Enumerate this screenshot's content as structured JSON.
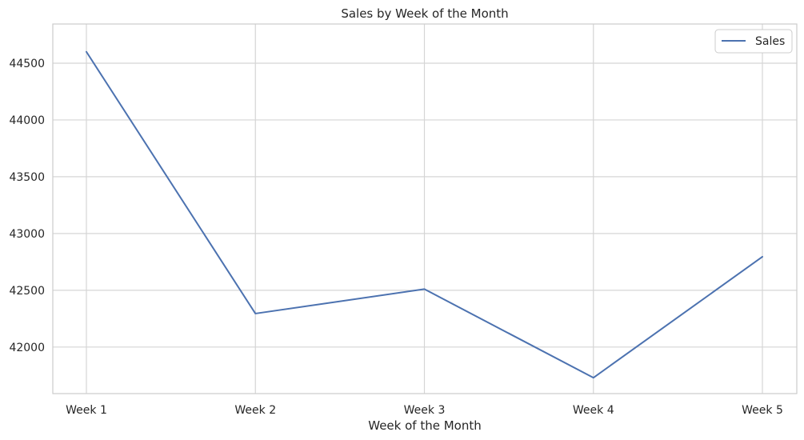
{
  "chart_data": {
    "type": "line",
    "title": "Sales by Week of the Month",
    "xlabel": "Week of the Month",
    "ylabel": "",
    "categories": [
      "Week 1",
      "Week 2",
      "Week 3",
      "Week 4",
      "Week 5"
    ],
    "series": [
      {
        "name": "Sales",
        "values": [
          44600,
          42295,
          42510,
          41730,
          42795
        ],
        "color": "#4c72b0"
      }
    ],
    "yticks": [
      42000,
      42500,
      43000,
      43500,
      44000,
      44500
    ],
    "ylim": [
      41590,
      44845
    ],
    "grid": true,
    "legend_position": "top-right"
  }
}
